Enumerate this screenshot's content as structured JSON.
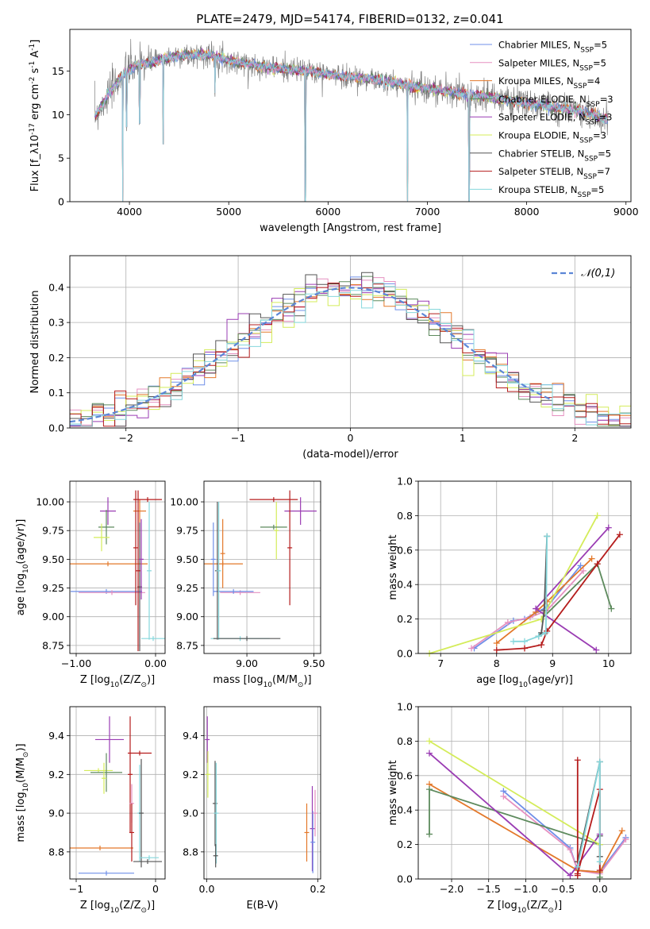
{
  "title": "PLATE=2479, MJD=54174, FIBERID=0132, z=0.041",
  "colors": {
    "Chabrier MILES": "#6f8fe8",
    "Salpeter MILES": "#e590c0",
    "Kroupa MILES": "#e3782a",
    "Chabrier ELODIE": "#5d8a5d",
    "Salpeter ELODIE": "#9a3cb3",
    "Kroupa ELODIE": "#d4ec5a",
    "Chabrier STELIB": "#555555",
    "Salpeter STELIB": "#b51c1c",
    "Kroupa STELIB": "#86d7dc"
  },
  "chart_data": [
    {
      "id": "spectrum",
      "type": "line",
      "xlabel": "wavelength [Angstrom, rest frame]",
      "ylabel": "Flux [f_λ10^-17 erg cm^-2 s^-1 A^-1]",
      "xlim": [
        3400,
        9050
      ],
      "ylim": [
        0,
        19.8
      ],
      "xticks": [
        4000,
        5000,
        6000,
        7000,
        8000,
        9000
      ],
      "yticks": [
        0,
        5,
        10,
        15
      ],
      "legend": [
        "Chabrier MILES, N_SSP=5",
        "Salpeter MILES, N_SSP=5",
        "Kroupa MILES, N_SSP=4",
        "Chabrier ELODIE, N_SSP=3",
        "Salpeter ELODIE, N_SSP=3",
        "Kroupa ELODIE, N_SSP=3",
        "Chabrier STELIB, N_SSP=5",
        "Salpeter STELIB, N_SSP=7",
        "Kroupa STELIB, N_SSP=5"
      ],
      "legend_position": "right",
      "continuum": [
        [
          3650,
          9.8
        ],
        [
          3800,
          12.5
        ],
        [
          3950,
          14.8
        ],
        [
          4100,
          15.8
        ],
        [
          4300,
          16.2
        ],
        [
          4500,
          16.8
        ],
        [
          4800,
          16.9
        ],
        [
          5000,
          16.2
        ],
        [
          5200,
          15.8
        ],
        [
          5500,
          15.3
        ],
        [
          5800,
          15.0
        ],
        [
          6100,
          14.5
        ],
        [
          6500,
          14.0
        ],
        [
          7000,
          13.0
        ],
        [
          7500,
          12.2
        ],
        [
          8000,
          11.3
        ],
        [
          8500,
          10.5
        ],
        [
          8800,
          9.5
        ]
      ],
      "dips": [
        [
          3933,
          0
        ],
        [
          4340,
          6.6
        ],
        [
          4102,
          9
        ],
        [
          5770,
          0
        ],
        [
          6800,
          0
        ],
        [
          7420,
          0
        ],
        [
          3970,
          8.6
        ],
        [
          4861,
          12.5
        ],
        [
          6563,
          13.0
        ]
      ]
    },
    {
      "id": "residuals",
      "type": "histogram",
      "xlabel": "(data-model)/error",
      "ylabel": "Normed distribution",
      "xlim": [
        -2.5,
        2.5
      ],
      "ylim": [
        0,
        0.49
      ],
      "xticks": [
        -2,
        -1,
        0,
        1,
        2
      ],
      "yticks": [
        0.0,
        0.1,
        0.2,
        0.3,
        0.4
      ],
      "bin_width": 0.1,
      "grid": true,
      "legend": [
        "𝒩(0,1)"
      ],
      "legend_position": "top-right"
    },
    {
      "id": "age_Z",
      "type": "scatter",
      "xlabel": "Z [log10(Z/Z⊙)]",
      "ylabel": "age  [log10(age/yr)]",
      "xlim": [
        -1.08,
        0.12
      ],
      "ylim": [
        8.68,
        10.18
      ],
      "xticks": [
        -1,
        0
      ],
      "yticks": [
        8.75,
        9.0,
        9.25,
        9.5,
        9.75,
        10.0
      ],
      "points": [
        {
          "m": "Salpeter ELODIE",
          "x": -0.6,
          "xe": 0.1,
          "y": 9.92,
          "ye": 0.12
        },
        {
          "m": "Kroupa MILES",
          "x": -0.2,
          "xe": 0.08,
          "y": 9.92,
          "ye": 0.1
        },
        {
          "m": "Chabrier ELODIE",
          "x": -0.62,
          "xe": 0.1,
          "y": 9.78,
          "ye": 0.15
        },
        {
          "m": "Kroupa ELODIE",
          "x": -0.68,
          "xe": 0.1,
          "y": 9.69,
          "ye": 0.12
        },
        {
          "m": "Salpeter STELIB",
          "x": -0.1,
          "xe": 0.18,
          "y": 10.02,
          "ye": 0.0
        },
        {
          "m": "Kroupa MILES",
          "x": -0.6,
          "xe": 0.5,
          "y": 9.46,
          "ye": 0.0
        },
        {
          "m": "Chabrier MILES",
          "x": -0.62,
          "xe": 0.45,
          "y": 9.22,
          "ye": 0.0
        },
        {
          "m": "Salpeter MILES",
          "x": -0.55,
          "xe": 0.42,
          "y": 9.21,
          "ye": 0.0
        },
        {
          "m": "Chabrier STELIB",
          "x": -0.2,
          "xe": 0.0,
          "y": 9.26,
          "ye": 0.56
        },
        {
          "m": "Salpeter STELIB",
          "x": -0.25,
          "xe": 0.0,
          "y": 9.6,
          "ye": 0.5
        },
        {
          "m": "Salpeter STELIB",
          "x": -0.22,
          "xe": 0.0,
          "y": 9.4,
          "ye": 0.7
        },
        {
          "m": "Kroupa STELIB",
          "x": -0.08,
          "xe": 0.0,
          "y": 9.4,
          "ye": 0.6
        },
        {
          "m": "Kroupa STELIB",
          "x": -0.03,
          "xe": 0.15,
          "y": 8.81,
          "ye": 0.0
        },
        {
          "m": "Salpeter ELODIE",
          "x": -0.18,
          "xe": 0.0,
          "y": 9.5,
          "ye": 0.35
        }
      ]
    },
    {
      "id": "age_mass",
      "type": "scatter",
      "xlabel": "mass [log10(M/M⊙)]",
      "ylabel": "",
      "xlim": [
        8.68,
        9.55
      ],
      "ylim": [
        8.68,
        10.18
      ],
      "xticks": [
        9.0,
        9.5
      ],
      "yticks": [
        8.75,
        9.0,
        9.25,
        9.5,
        9.75,
        10.0
      ],
      "points": [
        {
          "m": "Salpeter STELIB",
          "x": 9.2,
          "xe": 0.18,
          "y": 10.02,
          "ye": 0.0
        },
        {
          "m": "Salpeter ELODIE",
          "x": 9.4,
          "xe": 0.12,
          "y": 9.92,
          "ye": 0.12
        },
        {
          "m": "Kroupa ELODIE",
          "x": 9.22,
          "xe": 0.0,
          "y": 9.75,
          "ye": 0.25
        },
        {
          "m": "Chabrier ELODIE",
          "x": 9.2,
          "xe": 0.1,
          "y": 9.78,
          "ye": 0.0
        },
        {
          "m": "Kroupa MILES",
          "x": 8.82,
          "xe": 0.15,
          "y": 9.46,
          "ye": 0.0
        },
        {
          "m": "Kroupa MILES",
          "x": 8.82,
          "xe": 0.0,
          "y": 9.55,
          "ye": 0.3
        },
        {
          "m": "Chabrier MILES",
          "x": 8.75,
          "xe": 0.0,
          "y": 9.5,
          "ye": 0.32
        },
        {
          "m": "Salpeter MILES",
          "x": 8.95,
          "xe": 0.15,
          "y": 9.21,
          "ye": 0.0
        },
        {
          "m": "Chabrier MILES",
          "x": 8.9,
          "xe": 0.15,
          "y": 9.22,
          "ye": 0.0
        },
        {
          "m": "Chabrier STELIB",
          "x": 8.78,
          "xe": 0.0,
          "y": 9.4,
          "ye": 0.6
        },
        {
          "m": "Kroupa STELIB",
          "x": 8.79,
          "xe": 0.0,
          "y": 9.4,
          "ye": 0.6
        },
        {
          "m": "Salpeter STELIB",
          "x": 9.32,
          "xe": 0.0,
          "y": 9.6,
          "ye": 0.5
        },
        {
          "m": "Kroupa STELIB",
          "x": 8.95,
          "xe": 0.22,
          "y": 8.81,
          "ye": 0.0
        },
        {
          "m": "Chabrier STELIB",
          "x": 9.0,
          "xe": 0.25,
          "y": 8.81,
          "ye": 0.0
        }
      ]
    },
    {
      "id": "weight_age",
      "type": "line",
      "xlabel": "age  [log10(age/yr)]",
      "ylabel": "mass weight",
      "xlim": [
        6.6,
        10.4
      ],
      "ylim": [
        0,
        1.0
      ],
      "xticks": [
        7,
        8,
        9,
        10
      ],
      "yticks": [
        0.0,
        0.2,
        0.4,
        0.6,
        0.8,
        1.0
      ],
      "series": [
        {
          "m": "Chabrier MILES",
          "x": [
            7.6,
            8.3,
            8.5,
            8.9,
            9.5
          ],
          "y": [
            0.03,
            0.19,
            0.2,
            0.27,
            0.51
          ]
        },
        {
          "m": "Salpeter MILES",
          "x": [
            7.55,
            8.2,
            8.6,
            8.9,
            9.55
          ],
          "y": [
            0.03,
            0.18,
            0.21,
            0.25,
            0.48
          ]
        },
        {
          "m": "Kroupa MILES",
          "x": [
            8.0,
            8.7,
            8.9,
            9.7
          ],
          "y": [
            0.06,
            0.24,
            0.3,
            0.55
          ]
        },
        {
          "m": "Chabrier ELODIE",
          "x": [
            8.8,
            9.8,
            10.05
          ],
          "y": [
            0.2,
            0.52,
            0.26
          ]
        },
        {
          "m": "Salpeter ELODIE",
          "x": [
            9.78,
            8.7,
            10.0
          ],
          "y": [
            0.02,
            0.26,
            0.73
          ]
        },
        {
          "m": "Kroupa ELODIE",
          "x": [
            6.8,
            8.8,
            9.8
          ],
          "y": [
            0.0,
            0.2,
            0.8
          ]
        },
        {
          "m": "Chabrier STELIB",
          "x": [
            8.75,
            8.8,
            8.85,
            8.9
          ],
          "y": [
            0.1,
            0.12,
            0.25,
            0.68
          ]
        },
        {
          "m": "Salpeter STELIB",
          "x": [
            8.0,
            8.5,
            8.8,
            8.9,
            9.8,
            10.2
          ],
          "y": [
            0.02,
            0.03,
            0.05,
            0.13,
            0.52,
            0.69
          ]
        },
        {
          "m": "Kroupa STELIB",
          "x": [
            8.3,
            8.5,
            8.75,
            8.88,
            8.9
          ],
          "y": [
            0.07,
            0.07,
            0.1,
            0.12,
            0.68
          ]
        }
      ]
    },
    {
      "id": "mass_Z",
      "type": "scatter",
      "xlabel": "Z [log10(Z/Z⊙)]",
      "ylabel": "mass [log10(M/M⊙)]",
      "xlim": [
        -1.08,
        0.12
      ],
      "ylim": [
        8.66,
        9.55
      ],
      "xticks": [
        -1,
        0
      ],
      "yticks": [
        8.8,
        9.0,
        9.2,
        9.4
      ],
      "points": [
        {
          "m": "Salpeter ELODIE",
          "x": -0.58,
          "xe": 0.18,
          "y": 9.38,
          "ye": 0.12
        },
        {
          "m": "Kroupa ELODIE",
          "x": -0.72,
          "xe": 0.18,
          "y": 9.22,
          "ye": 0.0
        },
        {
          "m": "Chabrier ELODIE",
          "x": -0.62,
          "xe": 0.2,
          "y": 9.21,
          "ye": 0.1
        },
        {
          "m": "Kroupa ELODIE",
          "x": -0.65,
          "xe": 0.0,
          "y": 9.18,
          "ye": 0.08
        },
        {
          "m": "Salpeter STELIB",
          "x": -0.2,
          "xe": 0.15,
          "y": 9.31,
          "ye": 0.0
        },
        {
          "m": "Salpeter STELIB",
          "x": -0.32,
          "xe": 0.0,
          "y": 9.2,
          "ye": 0.3
        },
        {
          "m": "Salpeter MILES",
          "x": -0.3,
          "xe": 0.0,
          "y": 9.05,
          "ye": 0.1
        },
        {
          "m": "Kroupa STELIB",
          "x": -0.2,
          "xe": 0.0,
          "y": 9.0,
          "ye": 0.25
        },
        {
          "m": "Chabrier STELIB",
          "x": -0.18,
          "xe": 0.0,
          "y": 9.0,
          "ye": 0.28
        },
        {
          "m": "Kroupa MILES",
          "x": -0.7,
          "xe": 0.42,
          "y": 8.82,
          "ye": 0.0
        },
        {
          "m": "Chabrier MILES",
          "x": -0.62,
          "xe": 0.35,
          "y": 8.69,
          "ye": 0.0
        },
        {
          "m": "Chabrier STELIB",
          "x": -0.1,
          "xe": 0.18,
          "y": 8.75,
          "ye": 0.0
        },
        {
          "m": "Kroupa STELIB",
          "x": -0.08,
          "xe": 0.12,
          "y": 8.77,
          "ye": 0.0
        },
        {
          "m": "Salpeter STELIB",
          "x": -0.3,
          "xe": 0.0,
          "y": 8.9,
          "ye": 0.15
        }
      ]
    },
    {
      "id": "mass_ebv",
      "type": "scatter",
      "xlabel": "E(B-V)",
      "ylabel": "",
      "xlim": [
        -0.005,
        0.205
      ],
      "ylim": [
        8.66,
        9.55
      ],
      "xticks": [
        0.0,
        0.2
      ],
      "yticks": [
        8.8,
        9.0,
        9.2,
        9.4
      ],
      "points": [
        {
          "m": "Salpeter ELODIE",
          "x": 0.001,
          "xe": 0,
          "y": 9.38,
          "ye": 0.12
        },
        {
          "m": "Kroupa ELODIE",
          "x": 0.002,
          "xe": 0,
          "y": 9.2,
          "ye": 0.12
        },
        {
          "m": "Chabrier STELIB",
          "x": 0.015,
          "xe": 0,
          "y": 9.05,
          "ye": 0.22
        },
        {
          "m": "Kroupa STELIB",
          "x": 0.017,
          "xe": 0,
          "y": 9.0,
          "ye": 0.26
        },
        {
          "m": "Chabrier STELIB",
          "x": 0.016,
          "xe": 0,
          "y": 8.78,
          "ye": 0.06
        },
        {
          "m": "Kroupa MILES",
          "x": 0.18,
          "xe": 0,
          "y": 8.9,
          "ye": 0.15
        },
        {
          "m": "Salpeter ELODIE",
          "x": 0.19,
          "xe": 0,
          "y": 8.92,
          "ye": 0.22
        },
        {
          "m": "Chabrier MILES",
          "x": 0.191,
          "xe": 0,
          "y": 8.85,
          "ye": 0.16
        },
        {
          "m": "Salpeter MILES",
          "x": 0.195,
          "xe": 0,
          "y": 9.0,
          "ye": 0.12
        }
      ]
    },
    {
      "id": "weight_Z",
      "type": "line",
      "xlabel": "Z [log10(Z/Z⊙)]",
      "ylabel": "mass weight",
      "xlim": [
        -2.45,
        0.42
      ],
      "ylim": [
        0,
        1.0
      ],
      "xticks": [
        -2.0,
        -1.5,
        -1.0,
        -0.5,
        0.0
      ],
      "yticks": [
        0.0,
        0.2,
        0.4,
        0.6,
        0.8,
        1.0
      ],
      "series": [
        {
          "m": "Chabrier MILES",
          "x": [
            -1.3,
            -0.4,
            -0.3,
            0.0,
            0.35
          ],
          "y": [
            0.51,
            0.18,
            0.05,
            0.04,
            0.24
          ]
        },
        {
          "m": "Salpeter MILES",
          "x": [
            -1.3,
            -0.4,
            -0.3,
            0.0,
            0.35
          ],
          "y": [
            0.48,
            0.17,
            0.05,
            0.03,
            0.23
          ]
        },
        {
          "m": "Kroupa MILES",
          "x": [
            -2.3,
            -0.3,
            0.0,
            0.3
          ],
          "y": [
            0.55,
            0.05,
            0.04,
            0.28
          ]
        },
        {
          "m": "Chabrier ELODIE",
          "x": [
            -2.3,
            -2.3,
            0.0,
            0.0
          ],
          "y": [
            0.26,
            0.52,
            0.2,
            0.01
          ]
        },
        {
          "m": "Salpeter ELODIE",
          "x": [
            -2.3,
            -0.4,
            0.0
          ],
          "y": [
            0.73,
            0.02,
            0.26
          ]
        },
        {
          "m": "Kroupa ELODIE",
          "x": [
            -2.3,
            0.0
          ],
          "y": [
            0.8,
            0.2
          ]
        },
        {
          "m": "Chabrier STELIB",
          "x": [
            -0.3,
            0.0,
            0.0,
            0.0
          ],
          "y": [
            0.1,
            0.68,
            0.25,
            0.13
          ]
        },
        {
          "m": "Salpeter STELIB",
          "x": [
            -0.3,
            -0.3,
            -0.3,
            0.0,
            0.0
          ],
          "y": [
            0.02,
            0.69,
            0.03,
            0.52,
            0.05
          ]
        },
        {
          "m": "Kroupa STELIB",
          "x": [
            -0.3,
            0.0,
            0.0
          ],
          "y": [
            0.07,
            0.68,
            0.1
          ]
        }
      ]
    }
  ]
}
